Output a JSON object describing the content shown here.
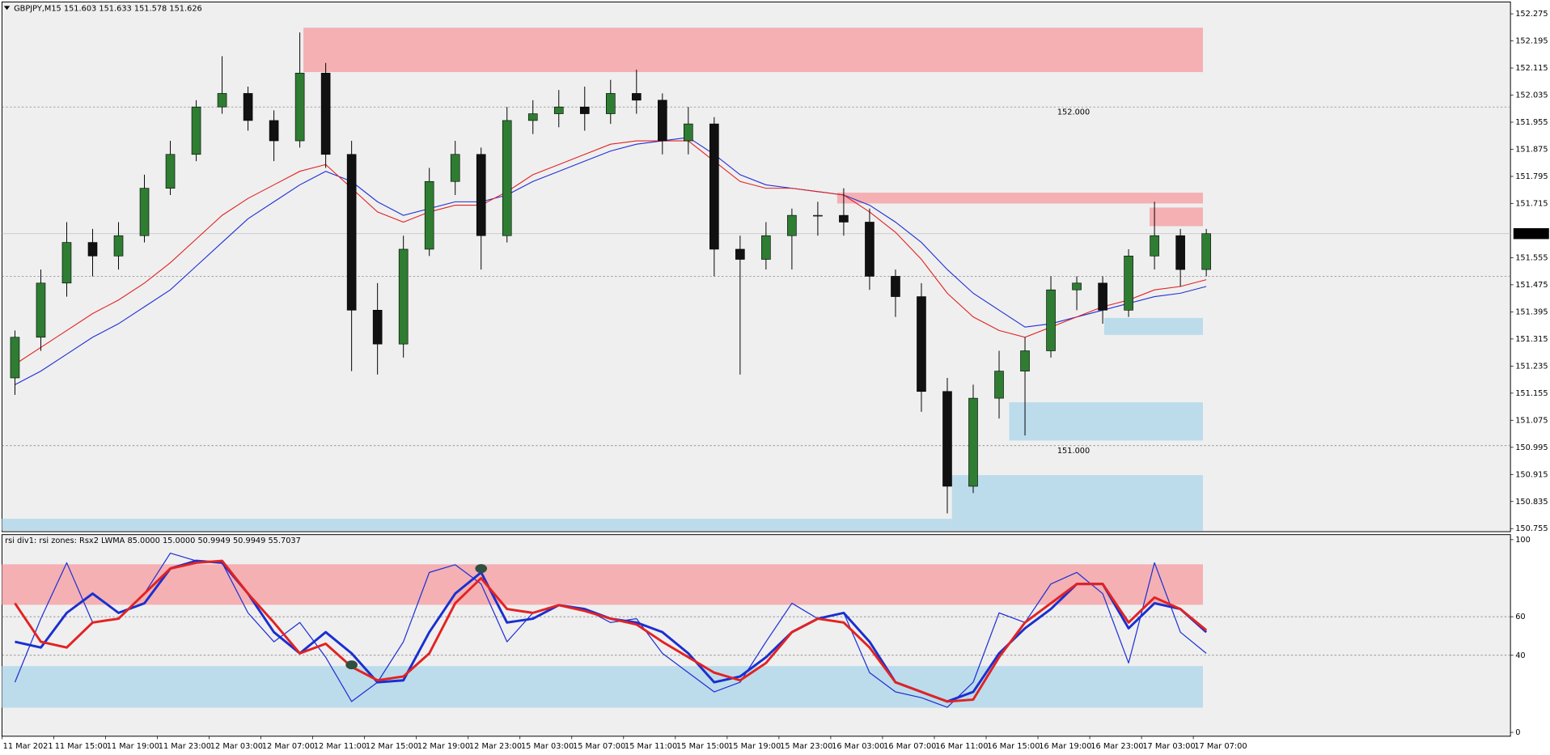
{
  "chart_data": [
    {
      "type": "candlestick",
      "title": "GBPJPY,M15  151.603 151.633 151.578 151.626",
      "categories": [
        "11 Mar 2021",
        null,
        "11 Mar 15:00",
        null,
        "11 Mar 19:00",
        null,
        "11 Mar 23:00",
        null,
        "12 Mar 03:00",
        null,
        "12 Mar 07:00",
        null,
        "12 Mar 11:00",
        null,
        "12 Mar 15:00",
        null,
        "12 Mar 19:00",
        null,
        "12 Mar 23:00",
        null,
        "15 Mar 03:00",
        null,
        "15 Mar 07:00",
        null,
        "15 Mar 11:00",
        null,
        "15 Mar 15:00",
        null,
        "15 Mar 19:00",
        null,
        "15 Mar 23:00",
        null,
        "16 Mar 03:00",
        null,
        "16 Mar 07:00",
        null,
        "16 Mar 11:00",
        null,
        "16 Mar 15:00",
        null,
        "16 Mar 19:00",
        null,
        "16 Mar 23:00",
        null,
        "17 Mar 03:00",
        null,
        "17 Mar 07:00"
      ],
      "open": [
        151.2,
        151.32,
        151.48,
        151.6,
        151.56,
        151.62,
        151.76,
        151.86,
        152.0,
        152.04,
        151.96,
        151.9,
        152.1,
        151.86,
        151.4,
        151.3,
        151.58,
        151.78,
        151.86,
        151.62,
        151.96,
        151.98,
        152.0,
        151.98,
        152.04,
        152.02,
        151.9,
        151.95,
        151.58,
        151.55,
        151.62,
        151.68,
        151.68,
        151.66,
        151.5,
        151.44,
        151.16,
        150.88,
        151.14,
        151.22,
        151.28,
        151.46,
        151.48,
        151.4,
        151.56,
        151.62,
        151.52
      ],
      "high": [
        151.34,
        151.52,
        151.66,
        151.64,
        151.66,
        151.8,
        151.9,
        152.02,
        152.15,
        152.06,
        151.99,
        152.22,
        152.13,
        151.9,
        151.48,
        151.62,
        151.82,
        151.9,
        151.88,
        152.0,
        152.02,
        152.05,
        152.06,
        152.08,
        152.11,
        152.04,
        152.0,
        151.97,
        151.62,
        151.66,
        151.7,
        151.72,
        151.76,
        151.7,
        151.52,
        151.48,
        151.2,
        151.18,
        151.28,
        151.32,
        151.5,
        151.5,
        151.5,
        151.58,
        151.72,
        151.64,
        151.64
      ],
      "low": [
        151.15,
        151.28,
        151.44,
        151.5,
        151.52,
        151.6,
        151.74,
        151.84,
        151.98,
        151.93,
        151.84,
        151.88,
        151.82,
        151.22,
        151.21,
        151.26,
        151.56,
        151.74,
        151.52,
        151.6,
        151.92,
        151.94,
        151.93,
        151.95,
        151.98,
        151.86,
        151.86,
        151.5,
        151.21,
        151.52,
        151.52,
        151.62,
        151.62,
        151.46,
        151.38,
        151.1,
        150.8,
        150.86,
        151.08,
        151.03,
        151.26,
        151.4,
        151.36,
        151.38,
        151.52,
        151.47,
        151.5
      ],
      "close": [
        151.32,
        151.48,
        151.6,
        151.56,
        151.62,
        151.76,
        151.86,
        152.0,
        152.04,
        151.96,
        151.9,
        152.1,
        151.86,
        151.4,
        151.3,
        151.58,
        151.78,
        151.86,
        151.62,
        151.96,
        151.98,
        152.0,
        151.98,
        152.04,
        152.02,
        151.9,
        151.95,
        151.58,
        151.55,
        151.62,
        151.68,
        151.68,
        151.66,
        151.5,
        151.44,
        151.16,
        150.88,
        151.14,
        151.22,
        151.28,
        151.46,
        151.48,
        151.4,
        151.56,
        151.62,
        151.52,
        151.626
      ],
      "up_color": "#2e7d32",
      "down_color": "#111111",
      "series": [
        {
          "color": "#1f2fd6",
          "values": [
            151.18,
            151.22,
            151.27,
            151.32,
            151.36,
            151.41,
            151.46,
            151.53,
            151.6,
            151.67,
            151.72,
            151.77,
            151.81,
            151.78,
            151.72,
            151.68,
            151.7,
            151.72,
            151.72,
            151.74,
            151.78,
            151.81,
            151.84,
            151.87,
            151.89,
            151.9,
            151.91,
            151.86,
            151.8,
            151.77,
            151.76,
            151.75,
            151.74,
            151.71,
            151.66,
            151.6,
            151.52,
            151.45,
            151.4,
            151.35,
            151.36,
            151.38,
            151.4,
            151.42,
            151.44,
            151.45,
            151.47
          ]
        },
        {
          "color": "#e32222",
          "values": [
            151.24,
            151.29,
            151.34,
            151.39,
            151.43,
            151.48,
            151.54,
            151.61,
            151.68,
            151.73,
            151.77,
            151.81,
            151.83,
            151.76,
            151.69,
            151.66,
            151.69,
            151.71,
            151.71,
            151.75,
            151.8,
            151.83,
            151.86,
            151.89,
            151.9,
            151.9,
            151.9,
            151.84,
            151.78,
            151.76,
            151.76,
            151.75,
            151.74,
            151.69,
            151.63,
            151.55,
            151.45,
            151.38,
            151.34,
            151.32,
            151.35,
            151.38,
            151.41,
            151.43,
            151.46,
            151.47,
            151.49
          ]
        }
      ],
      "zones": [
        {
          "from": 11.64,
          "to": 46.37,
          "low": 152.103,
          "high": 152.234,
          "color": "#f4b0b3"
        },
        {
          "from": 32.25,
          "to": 46.37,
          "low": 151.715,
          "high": 151.747,
          "color": "#f4b0b3"
        },
        {
          "from": 44.31,
          "to": 46.37,
          "low": 151.648,
          "high": 151.703,
          "color": "#f4b0b3"
        },
        {
          "from": 42.56,
          "to": 46.37,
          "low": 151.327,
          "high": 151.377,
          "color": "#bcdceb"
        },
        {
          "from": 38.89,
          "to": 46.37,
          "low": 151.015,
          "high": 151.128,
          "color": "#bcdceb"
        },
        {
          "from": 36.68,
          "to": 46.37,
          "low": 150.749,
          "high": 150.913,
          "color": "#bcdceb"
        },
        {
          "from": 0,
          "to": 36.68,
          "low": 150.749,
          "high": 150.784,
          "color": "#bcdceb"
        }
      ],
      "levels": [
        {
          "value": 152,
          "label": "152.000"
        },
        151.5,
        {
          "value": 151,
          "label": "151.000"
        }
      ],
      "ylim": [
        150.746,
        152.31
      ],
      "yticks": [
        152.275,
        152.195,
        152.115,
        152.035,
        151.955,
        151.875,
        151.795,
        151.715,
        151.555,
        151.475,
        151.395,
        151.315,
        151.235,
        151.155,
        151.075,
        150.995,
        150.915,
        150.835,
        150.755
      ]
    },
    {
      "type": "line",
      "title": "rsi div1: rsi zones: Rsx2 LWMA 85.0000 15.0000 50.9949 50.9949 55.7037",
      "series": [
        {
          "color": "#1f2fd6",
          "width": 1,
          "values": [
            26,
            59,
            88,
            57,
            59,
            72,
            93,
            89,
            88,
            62,
            47,
            57,
            39,
            16,
            26,
            47,
            83,
            87,
            77,
            47,
            62,
            66,
            64,
            57,
            59,
            41,
            31,
            21,
            26,
            47,
            67,
            59,
            62,
            31,
            21,
            18,
            13,
            26,
            62,
            57,
            77,
            83,
            72,
            36,
            88,
            52,
            41
          ]
        },
        {
          "color": "#1a2fd0",
          "width": 2.4,
          "values": [
            47,
            44,
            62,
            72,
            62,
            67,
            85,
            89,
            88,
            72,
            52,
            41,
            52,
            41,
            26,
            27,
            52,
            72,
            83,
            57,
            59,
            66,
            64,
            59,
            57,
            52,
            41,
            26,
            29,
            39,
            52,
            59,
            62,
            47,
            26,
            21,
            16,
            21,
            41,
            54,
            64,
            77,
            77,
            54,
            67,
            64,
            52
          ]
        },
        {
          "color": "#e32222",
          "width": 2.4,
          "values": [
            67,
            47,
            44,
            57,
            59,
            72,
            85,
            88,
            89,
            72,
            57,
            41,
            46,
            34,
            27,
            29,
            41,
            67,
            80,
            64,
            62,
            66,
            63,
            59,
            56,
            47,
            39,
            31,
            27,
            36,
            52,
            59,
            57,
            44,
            26,
            21,
            16,
            17,
            39,
            57,
            67,
            77,
            77,
            57,
            70,
            64,
            53
          ]
        },
        {
          "color": "#2f4f3f",
          "values": [
            null,
            null,
            null,
            null,
            null,
            null,
            null,
            null,
            null,
            null,
            null,
            null,
            null,
            35,
            null,
            null,
            null,
            null,
            85,
            null,
            null,
            null,
            null,
            null,
            null,
            null,
            null,
            null,
            null,
            null,
            null,
            null,
            null,
            null,
            null,
            null,
            null,
            null,
            null,
            null,
            null,
            null,
            null,
            null,
            null,
            null,
            null
          ]
        }
      ],
      "zones": [
        {
          "from": 0,
          "to": 46.37,
          "low": 66.2,
          "high": 87.2,
          "color": "#f4b0b3"
        },
        {
          "from": 0,
          "to": 46.37,
          "low": 12.8,
          "high": 34.4,
          "color": "#bcdceb"
        }
      ],
      "levels": [
        60,
        40
      ],
      "ylim": [
        -2,
        102.6
      ],
      "yticks": [
        100,
        60,
        40,
        0
      ]
    }
  ]
}
